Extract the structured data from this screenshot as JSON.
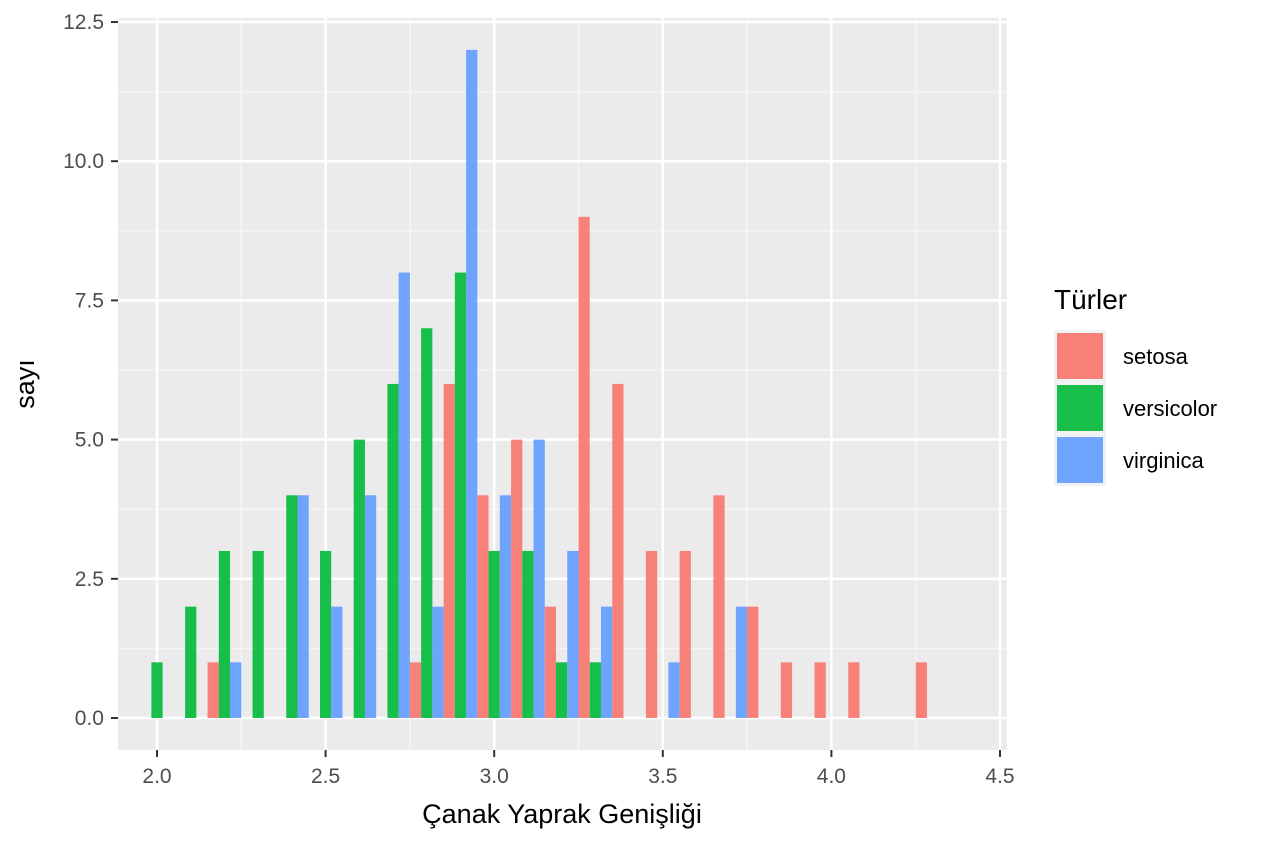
{
  "chart_data": {
    "type": "bar",
    "xlabel": "Çanak Yaprak Genişliği",
    "ylabel": "sayı",
    "xlim": [
      1.88,
      4.5
    ],
    "ylim": [
      -0.6,
      12.5
    ],
    "x_ticks": [
      2.0,
      2.5,
      3.0,
      3.5,
      4.0,
      4.5
    ],
    "x_tick_labels": [
      "2.0",
      "2.5",
      "3.0",
      "3.5",
      "4.0",
      "4.5"
    ],
    "y_ticks": [
      0,
      2.5,
      5,
      7.5,
      10,
      12.5
    ],
    "y_tick_labels": [
      "0.0",
      "2.5",
      "5.0",
      "7.5",
      "10.0",
      "12.5"
    ],
    "grid": true,
    "bar_width": 0.1,
    "legend": {
      "title": "Türler",
      "placement": "right",
      "entries": [
        {
          "label": "setosa",
          "color": "#F8766D"
        },
        {
          "label": "versicolor",
          "color": "#00BA38"
        },
        {
          "label": "virginica",
          "color": "#619CFF"
        }
      ]
    },
    "bins": [
      2.0,
      2.1,
      2.2,
      2.3,
      2.4,
      2.5,
      2.6,
      2.7,
      2.8,
      2.9,
      3.0,
      3.1,
      3.2,
      3.3,
      3.4,
      3.5,
      3.6,
      3.7,
      3.8,
      3.9,
      4.0,
      4.1,
      4.2,
      4.3
    ],
    "series": [
      {
        "name": "setosa",
        "color": "#F8766D",
        "values": [
          0,
          0,
          1,
          0,
          0,
          0,
          0,
          0,
          1,
          6,
          4,
          5,
          2,
          9,
          6,
          3,
          3,
          4,
          2,
          1,
          1,
          1,
          0,
          1
        ]
      },
      {
        "name": "versicolor",
        "color": "#00BA38",
        "values": [
          1,
          2,
          3,
          3,
          4,
          3,
          5,
          6,
          7,
          8,
          3,
          3,
          1,
          1,
          0,
          0,
          0,
          0,
          0,
          0,
          0,
          0,
          0,
          0
        ]
      },
      {
        "name": "virginica",
        "color": "#619CFF",
        "values": [
          0,
          0,
          1,
          0,
          4,
          2,
          4,
          8,
          2,
          12,
          4,
          5,
          3,
          2,
          0,
          1,
          0,
          2,
          0,
          0,
          0,
          0,
          0,
          0
        ]
      }
    ]
  }
}
